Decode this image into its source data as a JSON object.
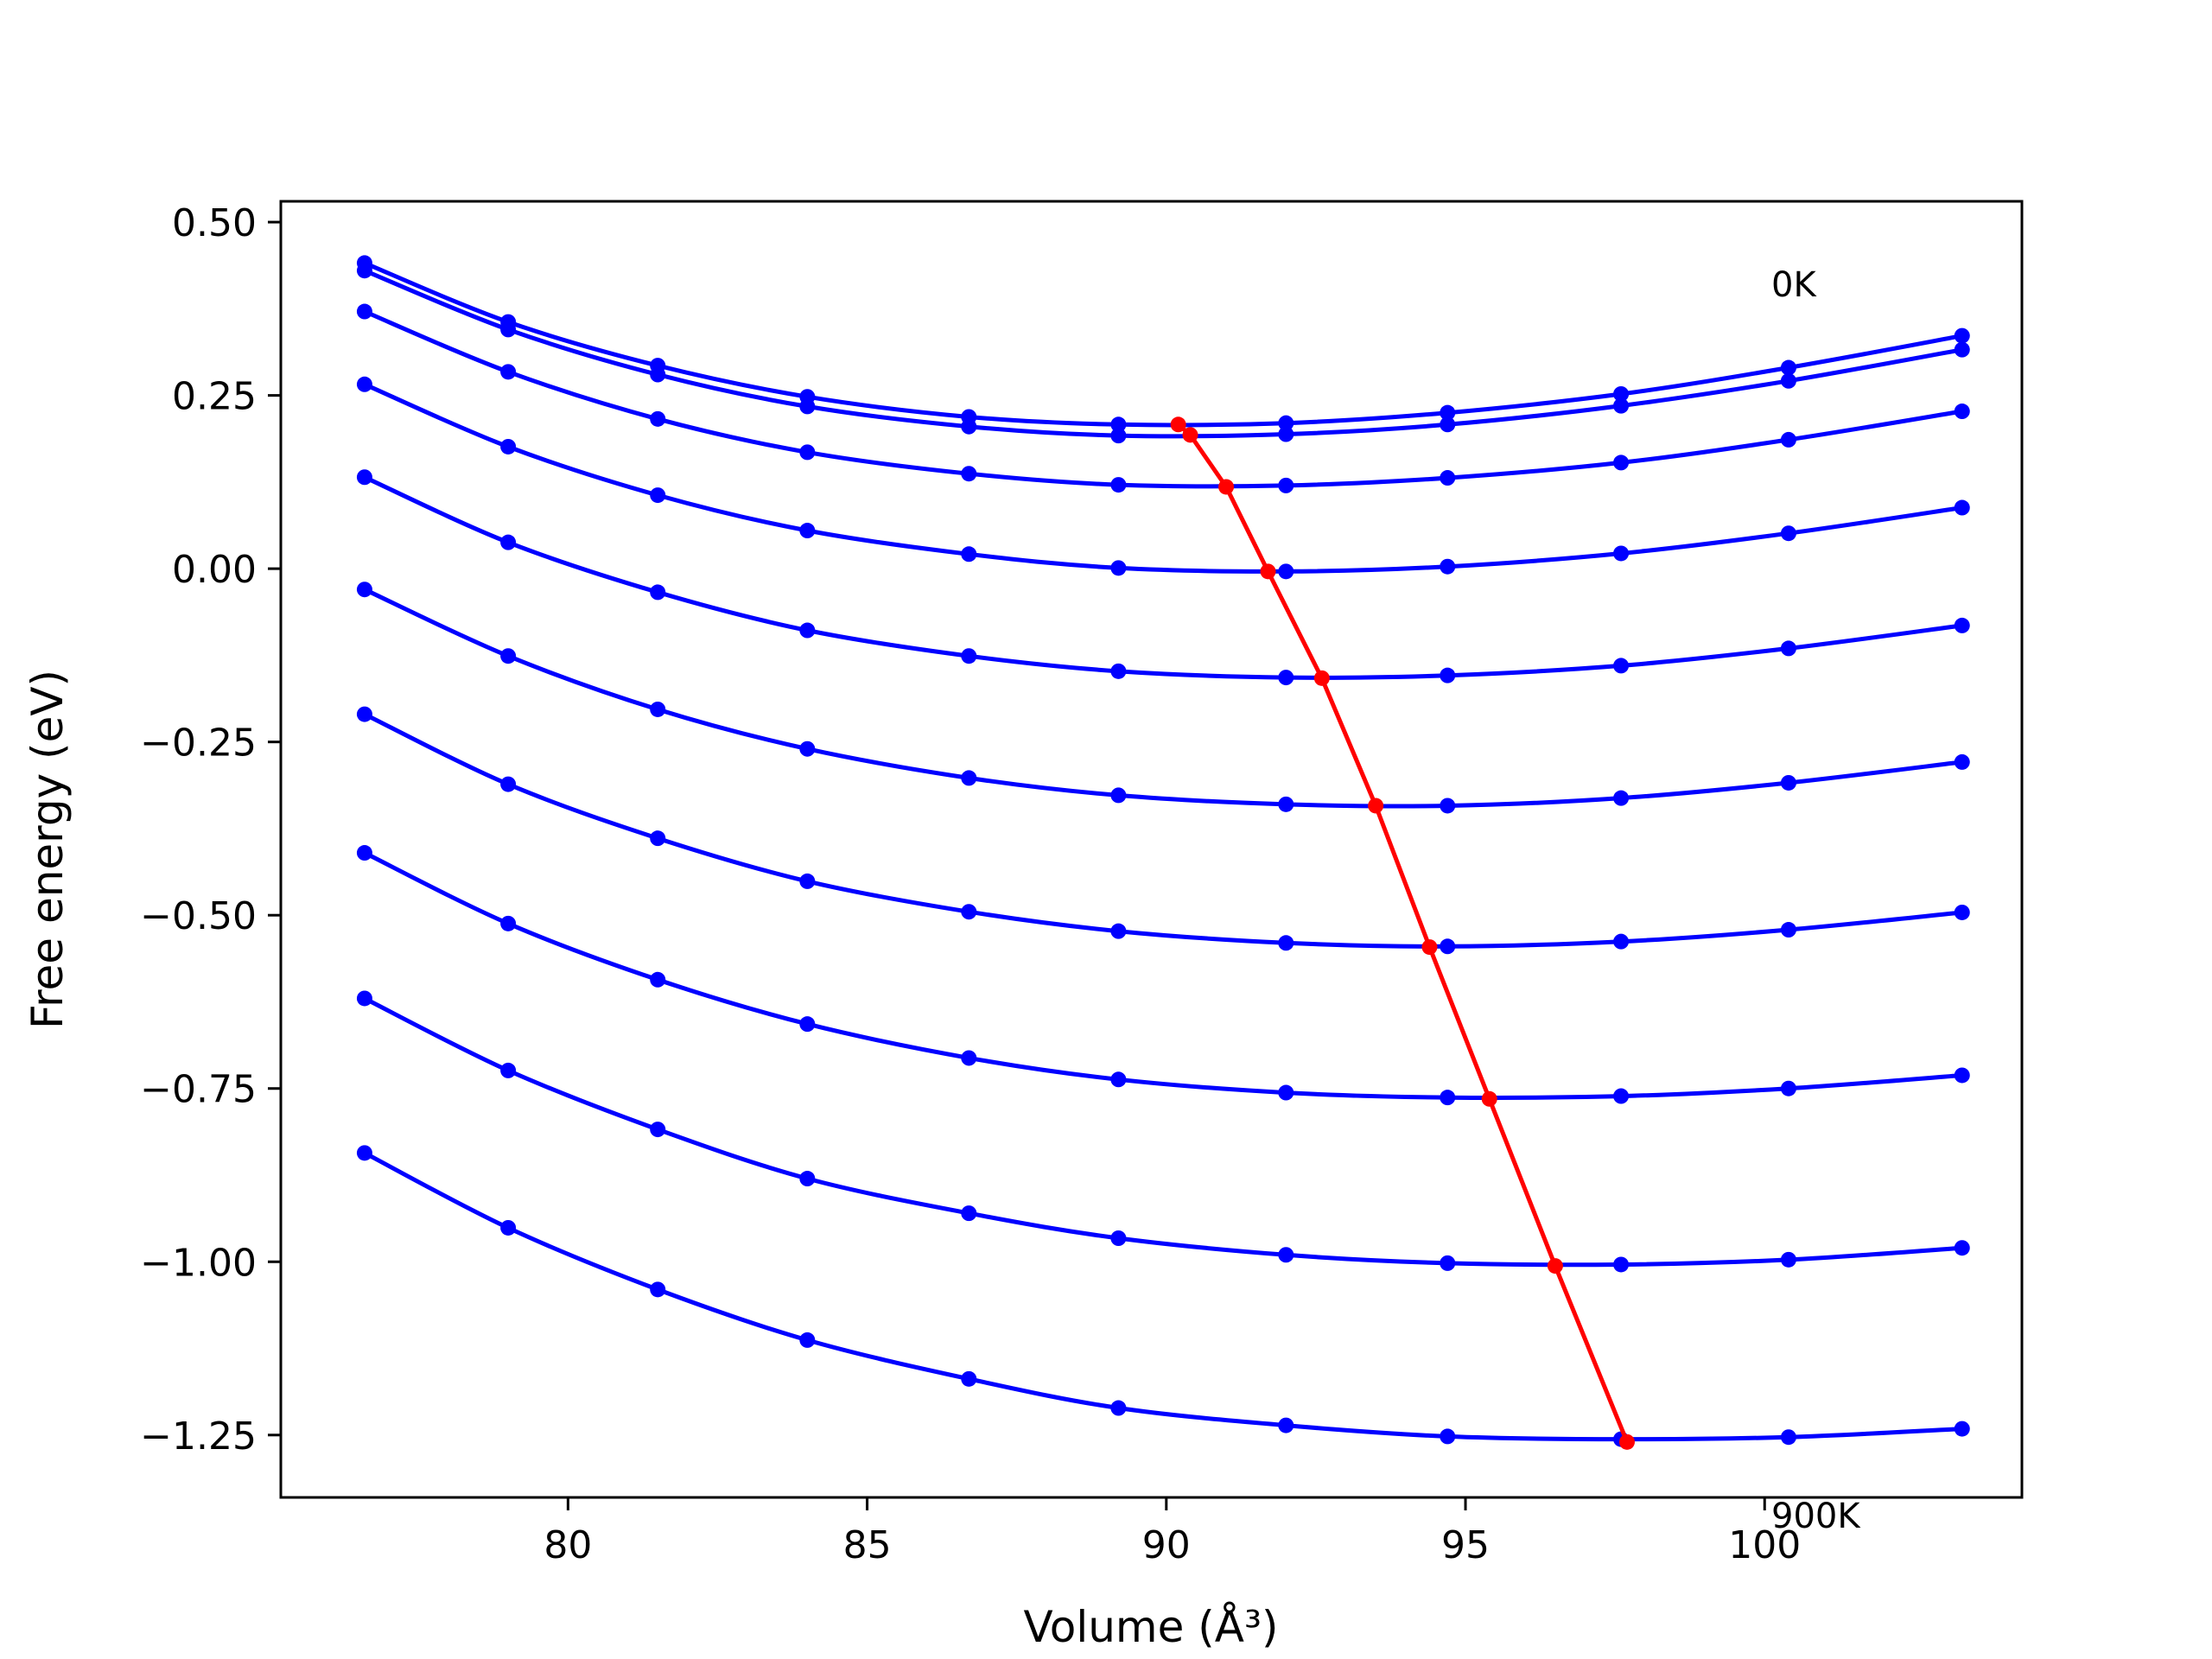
{
  "chart_data": {
    "type": "line",
    "xlabel": "Volume (Å³)",
    "ylabel": "Free energy (eV)",
    "xlim": [
      75.2,
      104.3
    ],
    "ylim": [
      -1.34,
      0.53
    ],
    "xticks": [
      80,
      85,
      90,
      95,
      100
    ],
    "yticks": [
      0.5,
      0.25,
      0.0,
      -0.25,
      -0.5,
      -0.75,
      -1.0,
      -1.25
    ],
    "xtick_labels": [
      "80",
      "85",
      "90",
      "95",
      "100"
    ],
    "ytick_labels": [
      "0.50",
      "0.25",
      "0.00",
      "−0.25",
      "−0.50",
      "−0.75",
      "−1.00",
      "−1.25"
    ],
    "annotations": [
      "0K",
      "900K"
    ],
    "grid": false,
    "x": [
      76.6,
      79.0,
      81.5,
      84.0,
      86.7,
      89.2,
      92.0,
      94.7,
      97.6,
      100.4,
      103.3
    ],
    "series": [
      {
        "color": "#0000ff",
        "values": [
          0.441,
          0.356,
          0.293,
          0.248,
          0.219,
          0.208,
          0.21,
          0.225,
          0.252,
          0.29,
          0.336
        ]
      },
      {
        "color": "#0000ff",
        "values": [
          0.43,
          0.345,
          0.28,
          0.234,
          0.205,
          0.192,
          0.194,
          0.208,
          0.235,
          0.271,
          0.316
        ]
      },
      {
        "color": "#0000ff",
        "values": [
          0.371,
          0.284,
          0.216,
          0.168,
          0.137,
          0.121,
          0.12,
          0.131,
          0.153,
          0.186,
          0.227
        ]
      },
      {
        "color": "#0000ff",
        "values": [
          0.266,
          0.176,
          0.106,
          0.055,
          0.021,
          0.001,
          -0.004,
          0.003,
          0.022,
          0.051,
          0.088
        ]
      },
      {
        "color": "#0000ff",
        "values": [
          0.132,
          0.038,
          -0.034,
          -0.089,
          -0.126,
          -0.148,
          -0.157,
          -0.154,
          -0.14,
          -0.115,
          -0.082
        ]
      },
      {
        "color": "#0000ff",
        "values": [
          -0.03,
          -0.126,
          -0.203,
          -0.26,
          -0.302,
          -0.327,
          -0.34,
          -0.342,
          -0.331,
          -0.309,
          -0.279
        ]
      },
      {
        "color": "#0000ff",
        "values": [
          -0.21,
          -0.311,
          -0.389,
          -0.451,
          -0.495,
          -0.523,
          -0.54,
          -0.545,
          -0.538,
          -0.521,
          -0.496
        ]
      },
      {
        "color": "#0000ff",
        "values": [
          -0.41,
          -0.512,
          -0.593,
          -0.657,
          -0.706,
          -0.737,
          -0.756,
          -0.763,
          -0.761,
          -0.75,
          -0.731
        ]
      },
      {
        "color": "#0000ff",
        "values": [
          -0.62,
          -0.724,
          -0.809,
          -0.88,
          -0.93,
          -0.966,
          -0.99,
          -1.002,
          -1.004,
          -0.997,
          -0.98
        ]
      },
      {
        "color": "#0000ff",
        "values": [
          -0.843,
          -0.951,
          -1.04,
          -1.113,
          -1.169,
          -1.211,
          -1.236,
          -1.252,
          -1.256,
          -1.253,
          -1.241
        ]
      }
    ],
    "minimum_series": {
      "color": "#ff0000",
      "x": [
        90.2,
        90.4,
        91.0,
        91.7,
        92.6,
        93.5,
        94.4,
        95.4,
        96.5,
        97.7
      ],
      "y": [
        0.208,
        0.193,
        0.118,
        -0.004,
        -0.158,
        -0.342,
        -0.546,
        -0.765,
        -1.006,
        -1.26
      ]
    }
  }
}
